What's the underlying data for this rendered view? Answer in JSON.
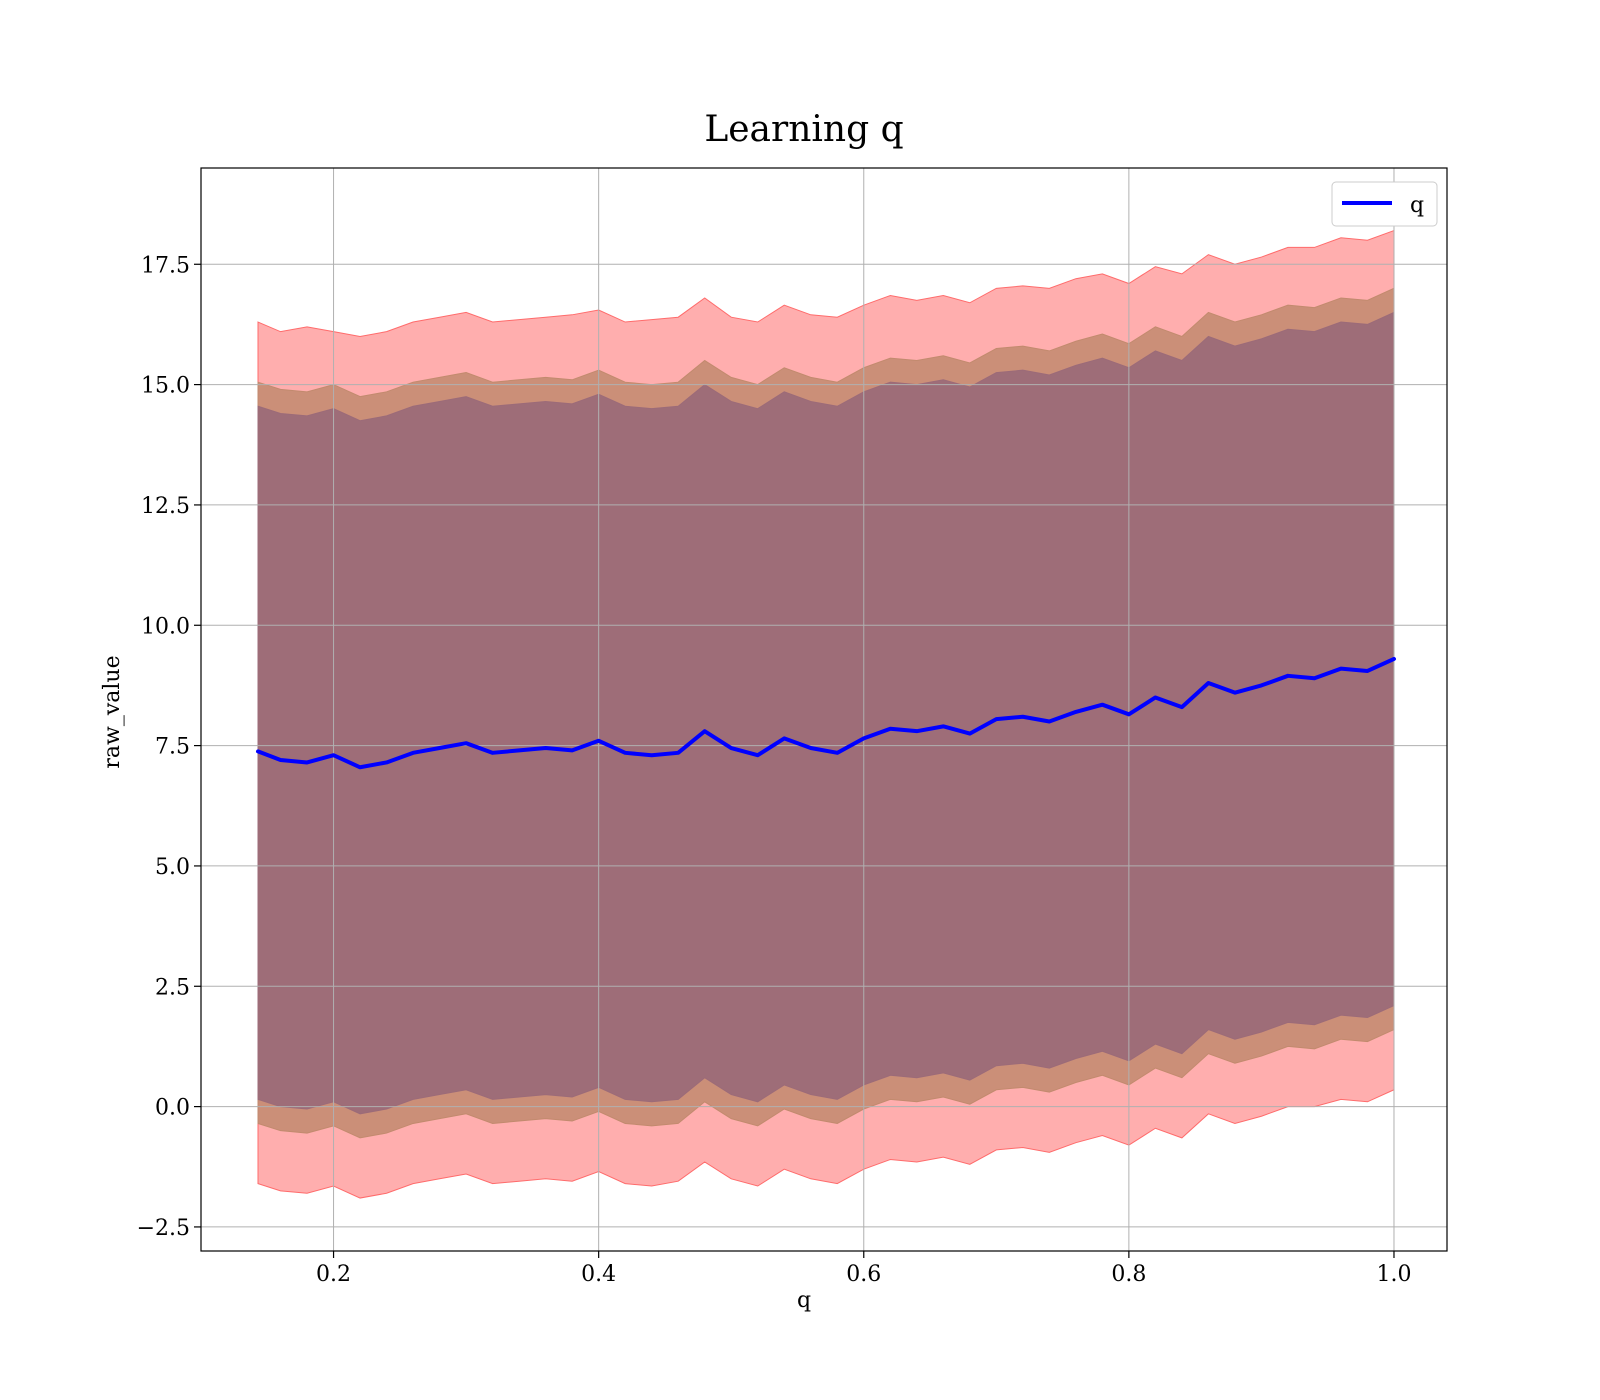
{
  "chart_data": {
    "type": "line",
    "title": "Learning q",
    "xlabel": "q",
    "ylabel": "raw_value",
    "xlim": [
      0.1,
      1.04
    ],
    "ylim": [
      -3.0,
      19.5
    ],
    "xticks": [
      0.2,
      0.4,
      0.6,
      0.8,
      1.0
    ],
    "xtick_labels": [
      "0.2",
      "0.4",
      "0.6",
      "0.8",
      "1.0"
    ],
    "yticks": [
      -2.5,
      0.0,
      2.5,
      5.0,
      7.5,
      10.0,
      12.5,
      15.0,
      17.5
    ],
    "ytick_labels": [
      "−2.5",
      "0.0",
      "2.5",
      "5.0",
      "7.5",
      "10.0",
      "12.5",
      "15.0",
      "17.5"
    ],
    "grid": true,
    "legend_position": "top-right",
    "series": [
      {
        "name": "q",
        "color": "#0000ff",
        "x": [
          0.143,
          0.16,
          0.18,
          0.2,
          0.22,
          0.24,
          0.26,
          0.28,
          0.3,
          0.32,
          0.34,
          0.36,
          0.38,
          0.4,
          0.42,
          0.44,
          0.46,
          0.48,
          0.5,
          0.52,
          0.54,
          0.56,
          0.58,
          0.6,
          0.62,
          0.64,
          0.66,
          0.68,
          0.7,
          0.72,
          0.74,
          0.76,
          0.78,
          0.8,
          0.82,
          0.84,
          0.86,
          0.88,
          0.9,
          0.92,
          0.94,
          0.96,
          0.98,
          1.0
        ],
        "y": [
          7.38,
          7.2,
          7.15,
          7.3,
          7.05,
          7.15,
          7.35,
          7.45,
          7.55,
          7.35,
          7.4,
          7.45,
          7.4,
          7.6,
          7.35,
          7.3,
          7.35,
          7.8,
          7.45,
          7.3,
          7.65,
          7.45,
          7.35,
          7.65,
          7.85,
          7.8,
          7.9,
          7.75,
          8.05,
          8.1,
          8.0,
          8.2,
          8.35,
          8.15,
          8.5,
          8.3,
          8.8,
          8.6,
          8.75,
          8.95,
          8.9,
          9.1,
          9.05,
          9.3
        ]
      }
    ],
    "bands": [
      {
        "name": "outer",
        "color": "#ff6b6b",
        "opacity": 0.55,
        "upper": [
          16.3,
          16.1,
          16.2,
          16.1,
          16.0,
          16.1,
          16.3,
          16.4,
          16.5,
          16.3,
          16.35,
          16.4,
          16.45,
          16.55,
          16.3,
          16.35,
          16.4,
          16.8,
          16.4,
          16.3,
          16.65,
          16.45,
          16.4,
          16.65,
          16.85,
          16.75,
          16.85,
          16.7,
          17.0,
          17.05,
          17.0,
          17.2,
          17.3,
          17.1,
          17.45,
          17.3,
          17.7,
          17.5,
          17.65,
          17.85,
          17.85,
          18.05,
          18.0,
          18.2
        ],
        "lower": [
          -1.6,
          -1.75,
          -1.8,
          -1.65,
          -1.9,
          -1.8,
          -1.6,
          -1.5,
          -1.4,
          -1.6,
          -1.55,
          -1.5,
          -1.55,
          -1.35,
          -1.6,
          -1.65,
          -1.55,
          -1.15,
          -1.5,
          -1.65,
          -1.3,
          -1.5,
          -1.6,
          -1.3,
          -1.1,
          -1.15,
          -1.05,
          -1.2,
          -0.9,
          -0.85,
          -0.95,
          -0.75,
          -0.6,
          -0.8,
          -0.45,
          -0.65,
          -0.15,
          -0.35,
          -0.2,
          0.0,
          0.0,
          0.15,
          0.1,
          0.35
        ]
      },
      {
        "name": "middle",
        "color": "#c28a6e",
        "opacity": 0.85,
        "upper": [
          15.05,
          14.9,
          14.85,
          15.0,
          14.75,
          14.85,
          15.05,
          15.15,
          15.25,
          15.05,
          15.1,
          15.15,
          15.1,
          15.3,
          15.05,
          15.0,
          15.05,
          15.5,
          15.15,
          15.0,
          15.35,
          15.15,
          15.05,
          15.35,
          15.55,
          15.5,
          15.6,
          15.45,
          15.75,
          15.8,
          15.7,
          15.9,
          16.05,
          15.85,
          16.2,
          16.0,
          16.5,
          16.3,
          16.45,
          16.65,
          16.6,
          16.8,
          16.75,
          17.0
        ],
        "lower": [
          -0.35,
          -0.5,
          -0.55,
          -0.4,
          -0.65,
          -0.55,
          -0.35,
          -0.25,
          -0.15,
          -0.35,
          -0.3,
          -0.25,
          -0.3,
          -0.1,
          -0.35,
          -0.4,
          -0.35,
          0.1,
          -0.25,
          -0.4,
          -0.05,
          -0.25,
          -0.35,
          -0.05,
          0.15,
          0.1,
          0.2,
          0.05,
          0.35,
          0.4,
          0.3,
          0.5,
          0.65,
          0.45,
          0.8,
          0.6,
          1.1,
          0.9,
          1.05,
          1.25,
          1.2,
          1.4,
          1.35,
          1.6
        ]
      },
      {
        "name": "inner",
        "color": "#9c6b78",
        "opacity": 0.97,
        "upper": [
          14.55,
          14.4,
          14.35,
          14.5,
          14.25,
          14.35,
          14.55,
          14.65,
          14.75,
          14.55,
          14.6,
          14.65,
          14.6,
          14.8,
          14.55,
          14.5,
          14.55,
          15.0,
          14.65,
          14.5,
          14.85,
          14.65,
          14.55,
          14.85,
          15.05,
          15.0,
          15.1,
          14.95,
          15.25,
          15.3,
          15.2,
          15.4,
          15.55,
          15.35,
          15.7,
          15.5,
          16.0,
          15.8,
          15.95,
          16.15,
          16.1,
          16.3,
          16.25,
          16.5
        ],
        "lower": [
          0.15,
          0.0,
          -0.05,
          0.1,
          -0.15,
          -0.05,
          0.15,
          0.25,
          0.35,
          0.15,
          0.2,
          0.25,
          0.2,
          0.4,
          0.15,
          0.1,
          0.15,
          0.6,
          0.25,
          0.1,
          0.45,
          0.25,
          0.15,
          0.45,
          0.65,
          0.6,
          0.7,
          0.55,
          0.85,
          0.9,
          0.8,
          1.0,
          1.15,
          0.95,
          1.3,
          1.1,
          1.6,
          1.4,
          1.55,
          1.75,
          1.7,
          1.9,
          1.85,
          2.1
        ]
      }
    ]
  }
}
